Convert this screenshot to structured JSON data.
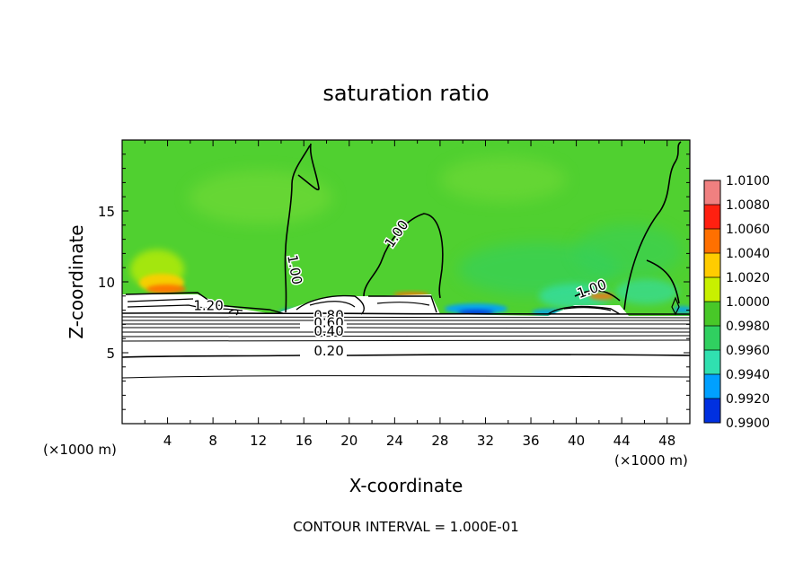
{
  "chart_data": {
    "type": "heatmap",
    "title": "saturation ratio",
    "xlabel": "X-coordinate",
    "ylabel": "Z-coordinate",
    "x_unit_left": "(×1000 m)",
    "x_unit_right": "(×1000 m)",
    "xlim": [
      0,
      50
    ],
    "ylim": [
      0,
      20
    ],
    "x_ticks": [
      4,
      8,
      12,
      16,
      20,
      24,
      28,
      32,
      36,
      40,
      44,
      48
    ],
    "y_ticks": [
      5,
      10,
      15
    ],
    "footer": "CONTOUR INTERVAL = 1.000E-01",
    "colorbar": {
      "labels": [
        "1.0100",
        "1.0080",
        "1.0060",
        "1.0040",
        "1.0020",
        "1.0000",
        "0.9980",
        "0.9960",
        "0.9940",
        "0.9920",
        "0.9900"
      ],
      "colors": [
        "#f08080",
        "#ff2010",
        "#ff7000",
        "#ffcc00",
        "#c8f000",
        "#48c828",
        "#30d060",
        "#30e0b0",
        "#00a0ff",
        "#0030e0",
        "#6a1090"
      ]
    },
    "contour_labels": [
      {
        "text": "1.20",
        "x": 7.6,
        "y": 8.0
      },
      {
        "text": "1.00",
        "x": 14.8,
        "y": 10.8
      },
      {
        "text": "1.00",
        "x": 24.5,
        "y": 13.2
      },
      {
        "text": "1.00",
        "x": 41.5,
        "y": 9.2
      },
      {
        "text": "0.80",
        "x": 18.2,
        "y": 7.3
      },
      {
        "text": "0.60",
        "x": 18.2,
        "y": 6.8
      },
      {
        "text": "0.40",
        "x": 18.2,
        "y": 6.2
      },
      {
        "text": "0.20",
        "x": 18.2,
        "y": 4.8
      }
    ]
  }
}
